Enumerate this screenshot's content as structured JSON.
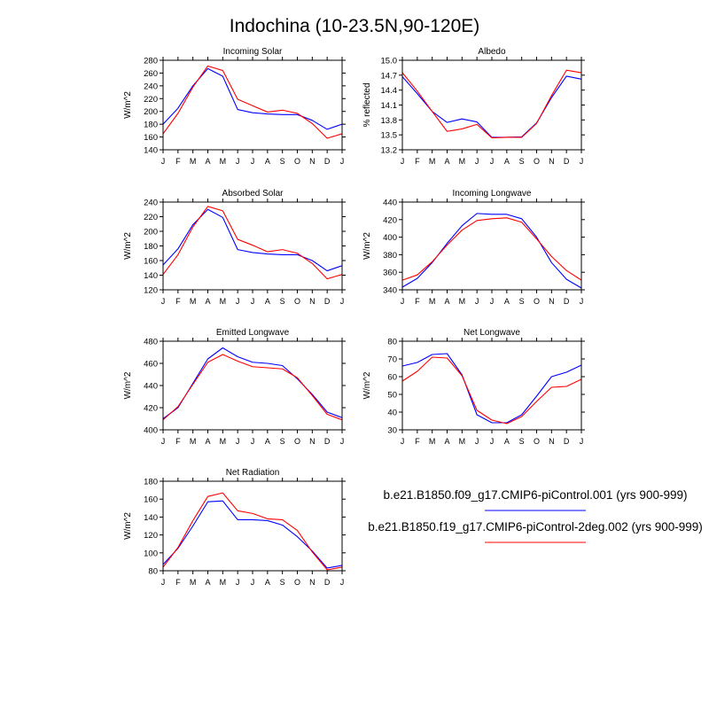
{
  "title": "Indochina (10-23.5N,90-120E)",
  "colors": {
    "run1": "#0000ff",
    "run2": "#ff0000",
    "axis": "#000000"
  },
  "legend": [
    {
      "label": "b.e21.B1850.f09_g17.CMIP6-piControl.001 (yrs 900-999)",
      "color": "#0000ff"
    },
    {
      "label": "b.e21.B1850.f19_g17.CMIP6-piControl-2deg.002 (yrs 900-999)",
      "color": "#ff0000"
    }
  ],
  "chart_data": [
    {
      "type": "line",
      "title": "Incoming Solar",
      "ylabel": "W/m^2",
      "categories": [
        "J",
        "F",
        "M",
        "A",
        "M",
        "J",
        "J",
        "A",
        "S",
        "O",
        "N",
        "D",
        "J"
      ],
      "ylim": [
        140,
        280
      ],
      "yticks": [
        "140",
        "160",
        "180",
        "200",
        "220",
        "240",
        "260",
        "280"
      ],
      "series": [
        {
          "name": "b.e21.B1850.f09_g17.CMIP6-piControl.001",
          "values": [
            180,
            205,
            240,
            267,
            255,
            203,
            198,
            196,
            195,
            195,
            186,
            172,
            180
          ]
        },
        {
          "name": "b.e21.B1850.f19_g17.CMIP6-piControl-2deg.002",
          "values": [
            165,
            197,
            238,
            271,
            264,
            219,
            209,
            199,
            202,
            197,
            181,
            158,
            165
          ]
        }
      ]
    },
    {
      "type": "line",
      "title": "Albedo",
      "ylabel": "% reflected",
      "categories": [
        "J",
        "F",
        "M",
        "A",
        "M",
        "J",
        "J",
        "A",
        "S",
        "O",
        "N",
        "D",
        "J"
      ],
      "ylim": [
        13.2,
        15.0
      ],
      "yticks": [
        "13.2",
        "13.5",
        "13.8",
        "14.1",
        "14.4",
        "14.7",
        "15.0"
      ],
      "series": [
        {
          "name": "b.e21.B1850.f09_g17.CMIP6-piControl.001",
          "values": [
            14.67,
            14.33,
            13.97,
            13.75,
            13.82,
            13.76,
            13.45,
            13.45,
            13.46,
            13.74,
            14.25,
            14.68,
            14.62
          ]
        },
        {
          "name": "b.e21.B1850.f19_g17.CMIP6-piControl-2deg.002",
          "values": [
            14.75,
            14.38,
            13.97,
            13.57,
            13.62,
            13.71,
            13.44,
            13.45,
            13.45,
            13.73,
            14.29,
            14.8,
            14.75
          ]
        }
      ]
    },
    {
      "type": "line",
      "title": "Absorbed Solar",
      "ylabel": "W/m^2",
      "categories": [
        "J",
        "F",
        "M",
        "A",
        "M",
        "J",
        "J",
        "A",
        "S",
        "O",
        "N",
        "D",
        "J"
      ],
      "ylim": [
        120,
        240
      ],
      "yticks": [
        "120",
        "140",
        "160",
        "180",
        "200",
        "220",
        "240"
      ],
      "series": [
        {
          "name": "b.e21.B1850.f09_g17.CMIP6-piControl.001",
          "values": [
            154,
            176,
            209,
            230,
            219,
            175,
            171,
            169,
            168,
            168,
            160,
            146,
            153
          ]
        },
        {
          "name": "b.e21.B1850.f19_g17.CMIP6-piControl-2deg.002",
          "values": [
            141,
            168,
            206,
            234,
            228,
            189,
            181,
            172,
            175,
            170,
            156,
            135,
            141
          ]
        }
      ]
    },
    {
      "type": "line",
      "title": "Incoming Longwave",
      "ylabel": "W/m^2",
      "categories": [
        "J",
        "F",
        "M",
        "A",
        "M",
        "J",
        "J",
        "A",
        "S",
        "O",
        "N",
        "D",
        "J"
      ],
      "ylim": [
        340,
        440
      ],
      "yticks": [
        "340",
        "360",
        "380",
        "400",
        "420",
        "440"
      ],
      "series": [
        {
          "name": "b.e21.B1850.f09_g17.CMIP6-piControl.001",
          "values": [
            343,
            353,
            371,
            393,
            413,
            427,
            426,
            426,
            421,
            400,
            371,
            352,
            342
          ]
        },
        {
          "name": "b.e21.B1850.f19_g17.CMIP6-piControl-2deg.002",
          "values": [
            351,
            357,
            372,
            391,
            408,
            419,
            421,
            422,
            417,
            398,
            378,
            362,
            351
          ]
        }
      ]
    },
    {
      "type": "line",
      "title": "Emitted Longwave",
      "ylabel": "W/m^2",
      "categories": [
        "J",
        "F",
        "M",
        "A",
        "M",
        "J",
        "J",
        "A",
        "S",
        "O",
        "N",
        "D",
        "J"
      ],
      "ylim": [
        400,
        480
      ],
      "yticks": [
        "400",
        "420",
        "440",
        "460",
        "480"
      ],
      "series": [
        {
          "name": "b.e21.B1850.f09_g17.CMIP6-piControl.001",
          "values": [
            410,
            420,
            442,
            464,
            474,
            466,
            461,
            460,
            458,
            446,
            432,
            416,
            411
          ]
        },
        {
          "name": "b.e21.B1850.f19_g17.CMIP6-piControl-2deg.002",
          "values": [
            409,
            421,
            441,
            461,
            468,
            462,
            457,
            456,
            455,
            447,
            431,
            414,
            409
          ]
        }
      ]
    },
    {
      "type": "line",
      "title": "Net Longwave",
      "ylabel": "W/m^2",
      "categories": [
        "J",
        "F",
        "M",
        "A",
        "M",
        "J",
        "J",
        "A",
        "S",
        "O",
        "N",
        "D",
        "J"
      ],
      "ylim": [
        30,
        80
      ],
      "yticks": [
        "30",
        "40",
        "50",
        "60",
        "70",
        "80"
      ],
      "series": [
        {
          "name": "b.e21.B1850.f09_g17.CMIP6-piControl.001",
          "values": [
            66,
            68,
            72.5,
            73,
            61,
            38.5,
            34,
            34,
            38.5,
            49,
            60,
            62.5,
            66.5
          ]
        },
        {
          "name": "b.e21.B1850.f19_g17.CMIP6-piControl-2deg.002",
          "values": [
            57.5,
            63,
            71,
            70.5,
            60.5,
            41,
            35.5,
            33.5,
            37.5,
            46,
            54,
            54.5,
            58.5
          ]
        }
      ]
    },
    {
      "type": "line",
      "title": "Net Radiation",
      "ylabel": "W/m^2",
      "categories": [
        "J",
        "F",
        "M",
        "A",
        "M",
        "J",
        "J",
        "A",
        "S",
        "O",
        "N",
        "D",
        "J"
      ],
      "ylim": [
        80,
        180
      ],
      "yticks": [
        "80",
        "100",
        "120",
        "140",
        "160",
        "180"
      ],
      "series": [
        {
          "name": "b.e21.B1850.f09_g17.CMIP6-piControl.001",
          "values": [
            87,
            105,
            130,
            157,
            158,
            137,
            137,
            136,
            131,
            118,
            102,
            83,
            86
          ]
        },
        {
          "name": "b.e21.B1850.f19_g17.CMIP6-piControl-2deg.002",
          "values": [
            84,
            106,
            136,
            163,
            167,
            147,
            144,
            138,
            137,
            125,
            101,
            81,
            84
          ]
        }
      ]
    }
  ]
}
